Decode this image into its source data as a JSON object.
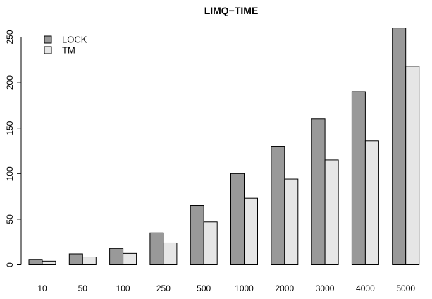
{
  "chart_data": {
    "type": "bar",
    "title": "LIMQ−TIME",
    "xlabel": "",
    "ylabel": "",
    "categories": [
      "10",
      "50",
      "100",
      "250",
      "500",
      "1000",
      "2000",
      "3000",
      "4000",
      "5000"
    ],
    "series": [
      {
        "name": "LOCK",
        "color": "#999999",
        "values": [
          6,
          12,
          18,
          35,
          65,
          100,
          130,
          160,
          190,
          260
        ]
      },
      {
        "name": "TM",
        "color": "#e6e6e6",
        "values": [
          4,
          8.5,
          12.5,
          24,
          47,
          73,
          94,
          115,
          136,
          218
        ]
      }
    ],
    "ylim": [
      0,
      260
    ],
    "yticks": [
      0,
      50,
      100,
      150,
      200,
      250
    ],
    "grid": false,
    "legend_position": "top-left",
    "bar_outline": "#000000"
  }
}
